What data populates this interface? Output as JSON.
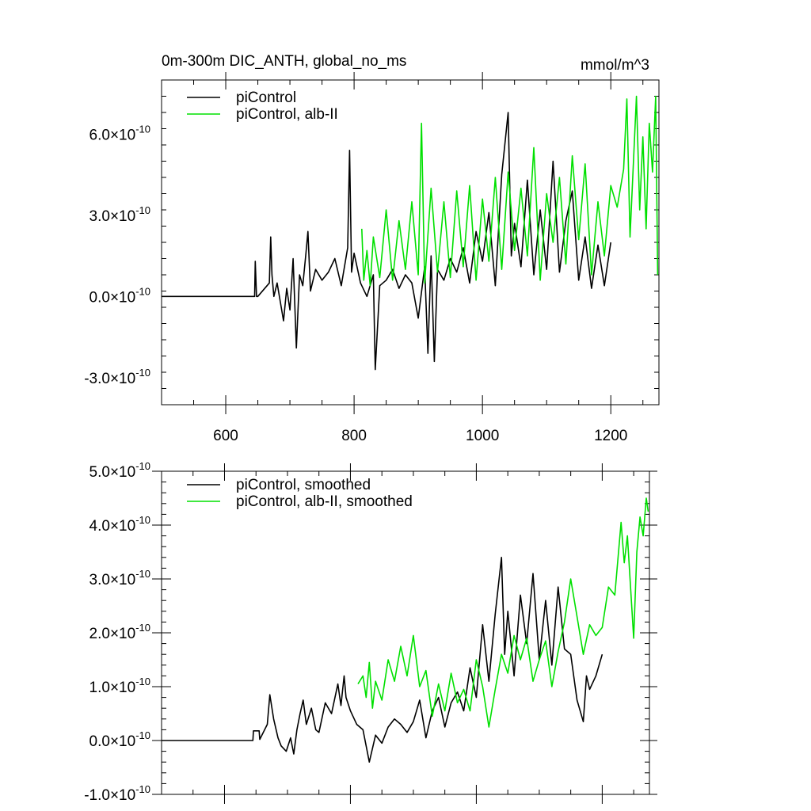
{
  "title": "0m-300m DIC_ANTH, global_no_ms",
  "units": "mmol/m^3",
  "colors": {
    "black": "#000000",
    "green": "#00e000"
  },
  "chart_data": [
    {
      "type": "line",
      "panel": "top",
      "xlim": [
        500,
        1275
      ],
      "ylim": [
        -4.0,
        8.0
      ],
      "x_ticks": [
        600,
        800,
        1000,
        1200
      ],
      "x_tick_labels": [
        "600",
        "800",
        "1000",
        "1200"
      ],
      "y_ticks": [
        -3.0,
        0.0,
        3.0,
        6.0
      ],
      "y_tick_labels": [
        "-3.0",
        "0.0",
        "3.0",
        "6.0"
      ],
      "y_exponent_base": "×10",
      "y_exponent": "-10",
      "legend": [
        "piControl",
        "piControl, alb-II"
      ],
      "series": [
        {
          "name": "piControl",
          "color": "#000000",
          "x": [
            500,
            645,
            646,
            648,
            650,
            668,
            670,
            672,
            675,
            680,
            690,
            695,
            700,
            705,
            710,
            715,
            720,
            725,
            728,
            732,
            740,
            750,
            760,
            770,
            780,
            790,
            793,
            796,
            800,
            810,
            820,
            830,
            833,
            840,
            850,
            860,
            870,
            880,
            890,
            900,
            910,
            915,
            920,
            925,
            930,
            940,
            950,
            960,
            970,
            980,
            990,
            1000,
            1010,
            1020,
            1030,
            1040,
            1045,
            1050,
            1060,
            1070,
            1080,
            1090,
            1100,
            1110,
            1120,
            1130,
            1140,
            1150,
            1160,
            1170,
            1180,
            1190,
            1200
          ],
          "values": [
            0,
            0,
            1.3,
            0,
            0,
            0.5,
            2.2,
            0.8,
            0,
            0.5,
            -0.9,
            0.3,
            -0.5,
            1.4,
            -1.9,
            0.8,
            0.4,
            1.6,
            2.4,
            0.2,
            1.0,
            0.6,
            0.9,
            1.4,
            0.4,
            1.8,
            5.4,
            0.9,
            1.6,
            0.5,
            0,
            0.8,
            -2.7,
            0.4,
            0.6,
            1.0,
            0.3,
            0.8,
            0.5,
            -0.8,
            1.1,
            -2.1,
            1.5,
            -2.4,
            1.0,
            0.6,
            1.4,
            0.9,
            1.8,
            0.5,
            2.4,
            1.3,
            3.1,
            0.4,
            4.5,
            6.8,
            1.5,
            2.7,
            1.1,
            4.3,
            0.8,
            3.2,
            1.0,
            5.0,
            0.9,
            2.8,
            3.9,
            0.6,
            2.2,
            0.3,
            1.9,
            0.4,
            2.0
          ]
        },
        {
          "name": "piControl, alb-II",
          "color": "#00e000",
          "x": [
            812,
            815,
            820,
            825,
            830,
            840,
            850,
            860,
            870,
            880,
            890,
            900,
            905,
            910,
            920,
            930,
            940,
            950,
            960,
            970,
            980,
            990,
            1000,
            1010,
            1020,
            1030,
            1040,
            1050,
            1060,
            1070,
            1080,
            1090,
            1100,
            1110,
            1120,
            1130,
            1140,
            1150,
            1160,
            1170,
            1180,
            1190,
            1200,
            1210,
            1220,
            1225,
            1230,
            1240,
            1245,
            1250,
            1255,
            1260,
            1265,
            1270,
            1273
          ],
          "values": [
            2.5,
            0.6,
            1.7,
            0.4,
            2.2,
            0.7,
            3.2,
            0.6,
            2.8,
            1.0,
            3.5,
            0.8,
            6.4,
            0.5,
            4.0,
            0.9,
            3.5,
            0.7,
            3.9,
            1.1,
            4.1,
            0.6,
            3.6,
            1.3,
            4.4,
            1.0,
            4.6,
            1.7,
            4.0,
            1.5,
            5.5,
            0.6,
            3.8,
            2.0,
            4.4,
            1.2,
            5.2,
            2.1,
            4.9,
            0.8,
            3.5,
            1.5,
            4.1,
            3.3,
            4.7,
            7.3,
            2.2,
            7.4,
            3.2,
            5.9,
            2.5,
            6.4,
            4.6,
            7.4,
            0.8
          ]
        }
      ]
    },
    {
      "type": "line",
      "panel": "bottom",
      "xlim": [
        500,
        1275
      ],
      "ylim": [
        -1.0,
        5.0
      ],
      "x_ticks": [
        600,
        800,
        1000,
        1200
      ],
      "y_ticks": [
        -1.0,
        0.0,
        1.0,
        2.0,
        3.0,
        4.0,
        5.0
      ],
      "y_tick_labels": [
        "-1.0",
        "0.0",
        "1.0",
        "2.0",
        "3.0",
        "4.0",
        "5.0"
      ],
      "y_exponent_base": "×10",
      "y_exponent": "-10",
      "legend": [
        "piControl, smoothed",
        "piControl, alb-II, smoothed"
      ],
      "series": [
        {
          "name": "piControl, smoothed",
          "color": "#000000",
          "x": [
            500,
            645,
            646,
            655,
            656,
            668,
            672,
            678,
            685,
            690,
            698,
            705,
            710,
            715,
            720,
            725,
            730,
            738,
            745,
            750,
            760,
            770,
            780,
            785,
            790,
            793,
            800,
            810,
            820,
            830,
            840,
            850,
            860,
            870,
            880,
            890,
            900,
            910,
            920,
            930,
            940,
            950,
            960,
            970,
            980,
            990,
            1000,
            1010,
            1020,
            1030,
            1040,
            1045,
            1050,
            1060,
            1070,
            1080,
            1090,
            1100,
            1110,
            1120,
            1130,
            1140,
            1150,
            1160,
            1170,
            1175,
            1180,
            1190,
            1200
          ],
          "values": [
            0,
            0,
            0.18,
            0.18,
            0.02,
            0.3,
            0.85,
            0.4,
            0.05,
            -0.1,
            -0.2,
            0.05,
            -0.25,
            0.2,
            0.5,
            0.75,
            0.3,
            0.6,
            0.2,
            0.15,
            0.7,
            0.5,
            1.05,
            0.65,
            1.2,
            0.8,
            0.55,
            0.3,
            0.2,
            -0.4,
            0.1,
            -0.05,
            0.25,
            0.4,
            0.3,
            0.15,
            0.35,
            0.75,
            0.05,
            0.55,
            0.8,
            0.25,
            0.7,
            0.9,
            0.55,
            1.35,
            0.8,
            2.15,
            1.1,
            2.35,
            3.4,
            1.6,
            2.4,
            1.2,
            2.7,
            1.8,
            3.1,
            1.5,
            2.6,
            1.4,
            2.85,
            1.7,
            1.6,
            0.75,
            0.35,
            1.2,
            0.95,
            1.2,
            1.6
          ]
        },
        {
          "name": "piControl, alb-II, smoothed",
          "color": "#00e000",
          "x": [
            812,
            820,
            825,
            830,
            835,
            840,
            850,
            860,
            870,
            880,
            890,
            900,
            910,
            920,
            930,
            940,
            950,
            960,
            970,
            980,
            990,
            1000,
            1010,
            1020,
            1030,
            1040,
            1050,
            1060,
            1070,
            1080,
            1090,
            1100,
            1110,
            1120,
            1130,
            1140,
            1150,
            1160,
            1170,
            1180,
            1190,
            1200,
            1210,
            1220,
            1230,
            1235,
            1240,
            1250,
            1255,
            1260,
            1265,
            1270,
            1273
          ],
          "values": [
            1.05,
            1.2,
            0.8,
            1.45,
            0.6,
            1.1,
            0.75,
            1.5,
            1.1,
            1.75,
            1.2,
            1.95,
            1.0,
            1.3,
            0.45,
            1.05,
            0.55,
            1.25,
            0.7,
            0.95,
            0.55,
            1.5,
            1.0,
            0.25,
            0.95,
            1.6,
            1.25,
            1.95,
            1.5,
            1.9,
            1.1,
            1.5,
            1.85,
            1.0,
            1.65,
            2.2,
            3.0,
            2.3,
            1.6,
            2.15,
            1.95,
            2.1,
            2.85,
            2.7,
            4.05,
            3.3,
            3.8,
            1.9,
            3.5,
            4.15,
            3.8,
            4.5,
            4.25
          ]
        }
      ]
    }
  ]
}
